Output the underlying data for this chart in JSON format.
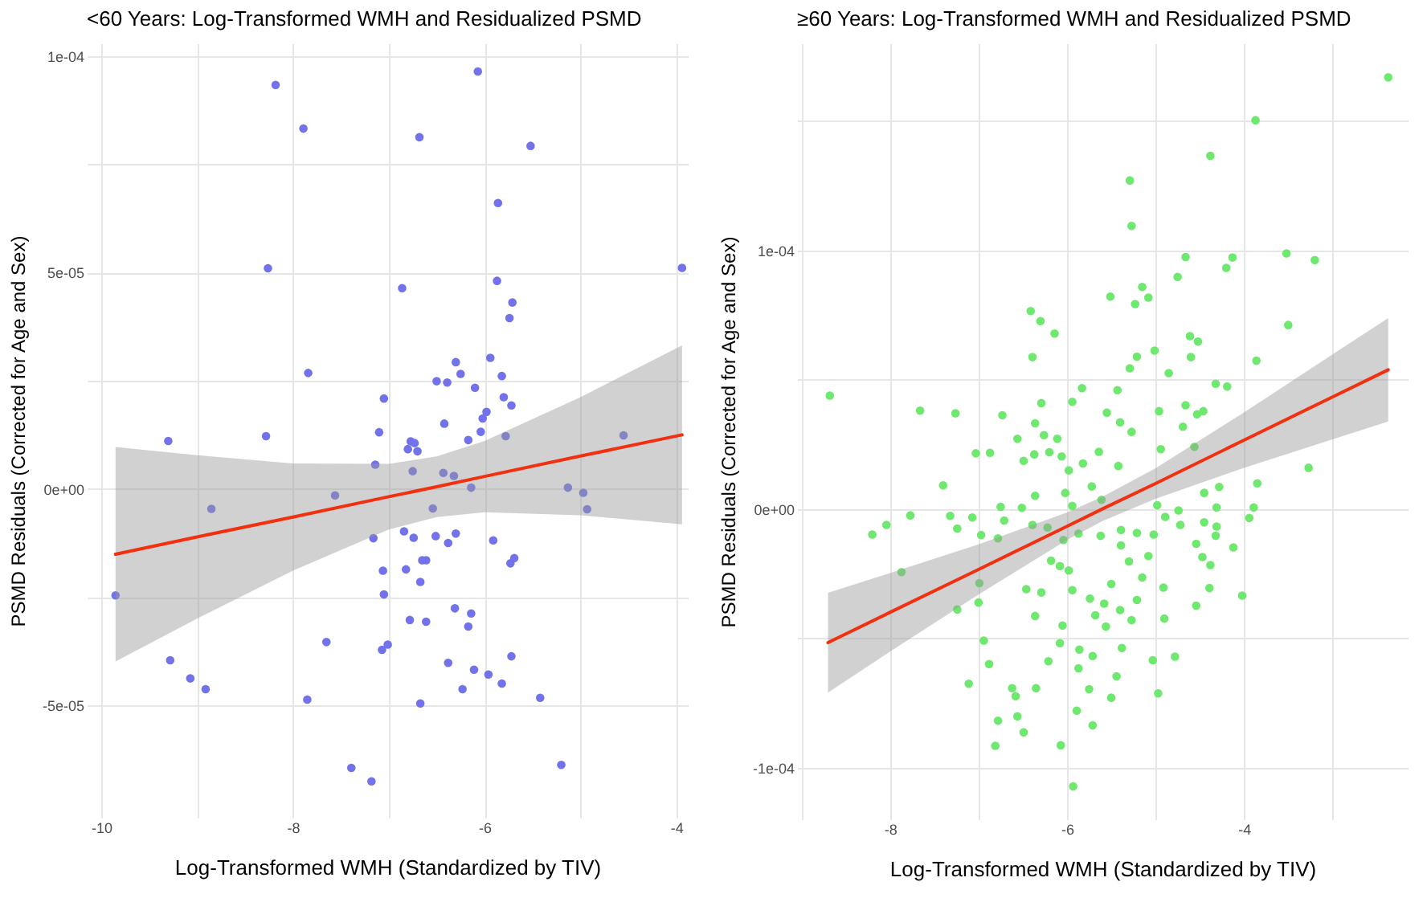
{
  "chart_data": [
    {
      "type": "scatter",
      "title": "<60 Years: Log-Transformed WMH and Residualized PSMD",
      "xlabel": "Log-Transformed WMH (Standardized by TIV)",
      "ylabel": "PSMD Residuals (Corrected for Age and Sex)",
      "xlim": [
        -10.15,
        -3.88
      ],
      "ylim": [
        -7.6e-05,
        0.000103
      ],
      "xticks": [
        -10,
        {
          "value": -9,
          "label": null
        },
        -8,
        {
          "value": -7,
          "label": null
        },
        -6,
        {
          "value": -5,
          "label": null
        },
        -4
      ],
      "yticks": [
        {
          "value": -5e-05,
          "label": "-5e-05"
        },
        {
          "value": -2.5e-05,
          "label": null
        },
        {
          "value": 0,
          "label": "0e+00"
        },
        {
          "value": 2.5e-05,
          "label": null
        },
        {
          "value": 5e-05,
          "label": "5e-05"
        },
        {
          "value": 7.5e-05,
          "label": null
        },
        {
          "value": 0.0001,
          "label": "1e-04"
        }
      ],
      "grid": true,
      "line_style": "solid",
      "series": [
        {
          "marker": "circle",
          "color": "#7272ea",
          "x": [
            -8.18,
            -6.07,
            -7.89,
            -6.68,
            -5.52,
            -5.86,
            -8.26,
            -3.94,
            -6.86,
            -5.87,
            -5.71,
            -5.74,
            -7.84,
            -6.3,
            -5.94,
            -6.25,
            -5.82,
            -6.5,
            -6.39,
            -6.1,
            -7.05,
            -5.8,
            -5.72,
            -5.98,
            -6.02,
            -6.42,
            -7.1,
            -6.04,
            -9.3,
            -8.28,
            -5.78,
            -4.55,
            -6.17,
            -6.77,
            -6.73,
            -6.8,
            -6.7,
            -7.14,
            -6.75,
            -6.43,
            -6.32,
            -6.14,
            -5.13,
            -4.97,
            -4.93,
            -7.56,
            -8.85,
            -6.54,
            -9.85,
            -7.16,
            -6.84,
            -6.74,
            -6.51,
            -6.38,
            -6.3,
            -5.91,
            -7.06,
            -6.82,
            -6.65,
            -6.61,
            -6.67,
            -5.73,
            -5.69,
            -7.05,
            -6.31,
            -6.14,
            -6.17,
            -6.78,
            -6.61,
            -7.65,
            -7.01,
            -7.07,
            -9.28,
            -9.07,
            -8.91,
            -6.38,
            -6.11,
            -5.96,
            -5.72,
            -5.82,
            -6.23,
            -7.85,
            -6.67,
            -5.42,
            -7.39,
            -7.18,
            -5.2
          ],
          "values": [
            9.34e-05,
            9.65e-05,
            8.33e-05,
            8.13e-05,
            7.93e-05,
            6.61e-05,
            5.1e-05,
            5.11e-05,
            4.64e-05,
            4.81e-05,
            4.31e-05,
            3.95e-05,
            2.68e-05,
            2.93e-05,
            3.03e-05,
            2.66e-05,
            2.61e-05,
            2.49e-05,
            2.46e-05,
            2.34e-05,
            2.09e-05,
            2.12e-05,
            1.93e-05,
            1.78e-05,
            1.63e-05,
            1.51e-05,
            1.31e-05,
            1.32e-05,
            1.11e-05,
            1.22e-05,
            1.22e-05,
            1.24e-05,
            1.13e-05,
            1.1e-05,
            1.06e-05,
            9.2e-06,
            8.7e-06,
            5.6e-06,
            4.1e-06,
            3.7e-06,
            3e-06,
            3e-07,
            3e-07,
            -9e-07,
            -4.7e-06,
            -1.5e-06,
            -4.6e-06,
            -4.5e-06,
            -2.46e-05,
            -1.14e-05,
            -9.8e-06,
            -1.13e-05,
            -1.09e-05,
            -1.25e-05,
            -1.03e-05,
            -1.19e-05,
            -1.89e-05,
            -1.86e-05,
            -1.65e-05,
            -1.65e-05,
            -2.15e-05,
            -1.72e-05,
            -1.6e-05,
            -2.44e-05,
            -2.76e-05,
            -2.88e-05,
            -3.18e-05,
            -3.03e-05,
            -3.07e-05,
            -3.54e-05,
            -3.6e-05,
            -3.72e-05,
            -3.96e-05,
            -4.38e-05,
            -4.63e-05,
            -4.02e-05,
            -4.18e-05,
            -4.29e-05,
            -3.87e-05,
            -4.5e-05,
            -4.63e-05,
            -4.87e-05,
            -4.96e-05,
            -4.83e-05,
            -6.45e-05,
            -6.76e-05,
            -6.38e-05
          ]
        },
        {
          "type": "line",
          "color": "#f2300f",
          "x": [
            -9.85,
            -9,
            -8,
            -7,
            -6.5,
            -6,
            -5,
            -3.94
          ],
          "values": [
            -1.51e-05,
            -1.11e-05,
            -6.5e-06,
            -1.8e-06,
            5e-07,
            2.9e-06,
            7.6e-06,
            1.25e-05
          ],
          "lower": [
            -3.99e-05,
            -3e-05,
            -1.89e-05,
            -9.4e-06,
            -6.5e-06,
            -5.4e-06,
            -6.1e-06,
            -8.2e-06
          ],
          "upper": [
            9.7e-06,
            7.8e-06,
            5.9e-06,
            5.8e-06,
            7.5e-06,
            1.11e-05,
            2.12e-05,
            3.32e-05
          ]
        }
      ]
    },
    {
      "type": "scatter",
      "title": "≥60 Years: Log-Transformed WMH and Residualized PSMD",
      "xlabel": "Log-Transformed WMH (Standardized by TIV)",
      "ylabel": "PSMD Residuals (Corrected for Age and Sex)",
      "xlim": [
        -9.05,
        -2.15
      ],
      "ylim": [
        -0.00012,
        0.00018
      ],
      "xticks": [
        {
          "value": -9,
          "label": null
        },
        -8,
        {
          "value": -7,
          "label": null
        },
        -6,
        {
          "value": -5,
          "label": null
        },
        -4,
        {
          "value": -3,
          "label": null
        }
      ],
      "yticks": [
        {
          "value": -0.0001,
          "label": "-1e-04"
        },
        {
          "value": -5e-05,
          "label": null
        },
        {
          "value": 0,
          "label": "0e+00"
        },
        {
          "value": 5e-05,
          "label": null
        },
        {
          "value": 0.0001,
          "label": "1e-04"
        },
        {
          "value": 0.00015,
          "label": null
        }
      ],
      "grid": true,
      "line_style": "solid",
      "series": [
        {
          "marker": "circle",
          "color": "#6ee86e",
          "x": [
            -2.37,
            -3.87,
            -4.38,
            -5.29,
            -5.27,
            -4.66,
            -4.13,
            -3.52,
            -3.2,
            -4.2,
            -4.75,
            -5.51,
            -5.15,
            -5.08,
            -5.23,
            -6.41,
            -6.3,
            -6.14,
            -3.5,
            -4.61,
            -4.52,
            -6.39,
            -5.21,
            -5.01,
            -4.6,
            -3.86,
            -5.29,
            -4.85,
            -4.32,
            -4.19,
            -8.68,
            -5.83,
            -5.43,
            -5.94,
            -6.29,
            -7.66,
            -7.26,
            -6.73,
            -5.55,
            -4.96,
            -4.66,
            -4.53,
            -4.46,
            -6.36,
            -5.4,
            -4.69,
            -5.27,
            -6.26,
            -6.56,
            -6.11,
            -7.03,
            -6.87,
            -6.37,
            -6.2,
            -6.06,
            -6.49,
            -5.98,
            -5.82,
            -5.64,
            -5.42,
            -4.94,
            -4.56,
            -3.27,
            -3.85,
            -7.4,
            -6.36,
            -6.02,
            -5.72,
            -5.61,
            -6.75,
            -6.51,
            -5.94,
            -4.98,
            -4.45,
            -4.28,
            -3.89,
            -4.31,
            -7.77,
            -8.2,
            -8.04,
            -7.32,
            -7.24,
            -7.07,
            -6.71,
            -6.39,
            -6.22,
            -6.97,
            -6.78,
            -6.04,
            -5.87,
            -5.62,
            -5.39,
            -5.21,
            -5.02,
            -4.89,
            -4.74,
            -4.72,
            -4.45,
            -4.31,
            -4.32,
            -4.54,
            -4.12,
            -3.94,
            -7.87,
            -6.99,
            -5.39,
            -5.08,
            -5.3,
            -4.47,
            -4.38,
            -6.18,
            -6.08,
            -5.98,
            -5.15,
            -5.5,
            -6.46,
            -6.29,
            -5.94,
            -4.39,
            -4.02,
            -4.91,
            -7.24,
            -7.0,
            -5.74,
            -5.58,
            -5.21,
            -4.54,
            -5.68,
            -5.4,
            -6.36,
            -4.9,
            -5.27,
            -5.56,
            -6.05,
            -6.94,
            -6.08,
            -5.86,
            -5.71,
            -5.38,
            -4.78,
            -5.03,
            -6.21,
            -6.88,
            -5.87,
            -5.44,
            -7.11,
            -6.35,
            -6.62,
            -5.75,
            -4.97,
            -6.58,
            -5.5,
            -5.89,
            -6.56,
            -6.78,
            -5.71,
            -6.49,
            -6.81,
            -6.07,
            -5.93
          ],
          "values": [
            0.0001669,
            0.0001503,
            0.0001365,
            0.000127,
            0.0001094,
            9.74e-05,
            9.72e-05,
            9.88e-05,
            9.62e-05,
            9.32e-05,
            8.97e-05,
            8.21e-05,
            8.58e-05,
            8.17e-05,
            7.92e-05,
            7.65e-05,
            7.26e-05,
            6.78e-05,
            7.11e-05,
            6.68e-05,
            6.47e-05,
            5.87e-05,
            5.89e-05,
            6.12e-05,
            5.87e-05,
            5.73e-05,
            5.44e-05,
            5.25e-05,
            4.84e-05,
            4.73e-05,
            4.38e-05,
            4.67e-05,
            4.59e-05,
            4.14e-05,
            4.09e-05,
            3.8e-05,
            3.7e-05,
            3.62e-05,
            3.72e-05,
            3.78e-05,
            4.01e-05,
            3.66e-05,
            3.78e-05,
            3.31e-05,
            3.35e-05,
            3.18e-05,
            2.98e-05,
            2.85e-05,
            2.71e-05,
            2.71e-05,
            2.15e-05,
            2.17e-05,
            2.11e-05,
            2.19e-05,
            2.03e-05,
            1.86e-05,
            1.49e-05,
            1.76e-05,
            2.21e-05,
            1.66e-05,
            2.31e-05,
            2.4e-05,
            1.59e-05,
            9.9e-06,
            9.1e-06,
            5.1e-06,
            6.2e-06,
            8.7e-06,
            3.5e-06,
            8e-07,
            4e-07,
            1.2e-06,
            1.4e-06,
            6.2e-06,
            8.5e-06,
            6e-07,
            6e-07,
            -2.5e-06,
            -9.9e-06,
            -6.2e-06,
            -2.7e-06,
            -7.6e-06,
            -3.3e-06,
            -4.5e-06,
            -6.2e-06,
            -7.2e-06,
            -1.01e-05,
            -1.14e-05,
            -1.2e-05,
            -9.5e-06,
            -1.04e-05,
            -8.1e-06,
            -9.3e-06,
            -9.9e-06,
            -3.1e-06,
            -6e-07,
            -6.2e-06,
            -5.2e-06,
            -6.8e-06,
            -1.04e-05,
            -1.35e-05,
            -1.49e-05,
            -3.5e-06,
            -2.44e-05,
            -2.87e-05,
            -1.41e-05,
            -1.82e-05,
            -2.03e-05,
            -1.86e-05,
            -2.17e-05,
            -2e-05,
            -2.21e-05,
            -2.38e-05,
            -2.65e-05,
            -2.9e-05,
            -3.1e-05,
            -3.23e-05,
            -3.14e-05,
            -3.06e-05,
            -3.35e-05,
            -3.04e-05,
            -3.89e-05,
            -3.62e-05,
            -3.47e-05,
            -3.66e-05,
            -3.52e-05,
            -3.74e-05,
            -4.11e-05,
            -3.91e-05,
            -4.14e-05,
            -4.24e-05,
            -4.3e-05,
            -4.55e-05,
            -4.51e-05,
            -5.09e-05,
            -5.19e-05,
            -5.44e-05,
            -5.69e-05,
            -5.38e-05,
            -5.71e-05,
            -5.85e-05,
            -5.89e-05,
            -6e-05,
            -6.16e-05,
            -6.47e-05,
            -6.76e-05,
            -6.93e-05,
            -6.93e-05,
            -6.97e-05,
            -7.13e-05,
            -7.24e-05,
            -7.3e-05,
            -7.8e-05,
            -8.02e-05,
            -8.19e-05,
            -8.37e-05,
            -8.64e-05,
            -9.16e-05,
            -9.14e-05,
            -0.0001073
          ]
        },
        {
          "type": "line",
          "color": "#f2300f",
          "x": [
            -8.7,
            -8,
            -7,
            -6,
            -5.6,
            -5,
            -4,
            -3,
            -2.37
          ],
          "values": [
            -5.17e-05,
            -4e-05,
            -2.34e-05,
            -6.7e-06,
            0.0,
            9.8e-06,
            2.66e-05,
            4.33e-05,
            5.38e-05
          ],
          "lower": [
            -7.1e-05,
            -5.52e-05,
            -3.31e-05,
            -1.2e-05,
            -4.7e-06,
            3.9e-06,
            1.59e-05,
            2.69e-05,
            3.38e-05
          ],
          "upper": [
            -3.24e-05,
            -2.48e-05,
            -1.37e-05,
            -1.4e-06,
            4.7e-06,
            1.57e-05,
            3.73e-05,
            5.97e-05,
            7.38e-05
          ]
        }
      ]
    }
  ]
}
